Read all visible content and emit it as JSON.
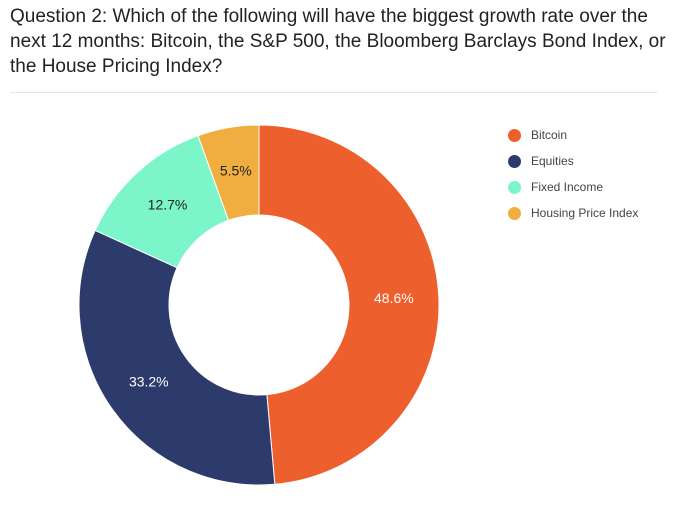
{
  "question": {
    "text": "Question 2: Which of the following will have the biggest growth rate over the next 12 months: Bitcoin, the S&P 500, the Bloomberg Barclays Bond Index, or the House Pricing Index?"
  },
  "chart_data": {
    "type": "pie",
    "variant": "donut",
    "title": "",
    "legend_position": "right",
    "series": [
      {
        "name": "Bitcoin",
        "value": 48.6,
        "label": "48.6%",
        "color": "#EE5F2E",
        "label_color": "#ffffff"
      },
      {
        "name": "Equities",
        "value": 33.2,
        "label": "33.2%",
        "color": "#2D3A6C",
        "label_color": "#ffffff"
      },
      {
        "name": "Fixed Income",
        "value": 12.7,
        "label": "12.7%",
        "color": "#7BF5C9",
        "label_color": "#222222"
      },
      {
        "name": "Housing Price Index",
        "value": 5.5,
        "label": "5.5%",
        "color": "#F0AE40",
        "label_color": "#222222"
      }
    ]
  }
}
